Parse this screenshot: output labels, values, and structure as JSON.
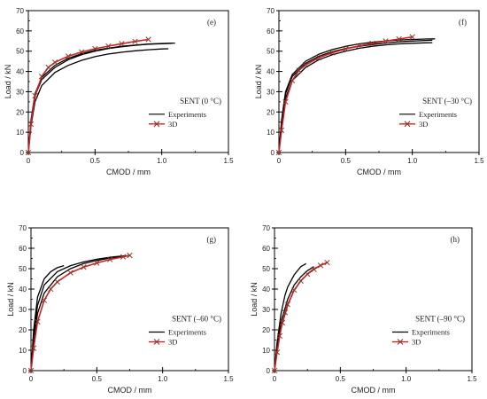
{
  "chart_data": [
    {
      "type": "line",
      "panel_label": "(e)",
      "title": "SENT (0 °C)",
      "xlabel": "CMOD / mm",
      "ylabel": "Load / kN",
      "xlim": [
        0,
        1.5
      ],
      "ylim": [
        0,
        70
      ],
      "xticks": [
        "0",
        "0.5",
        "1.0",
        "1.5"
      ],
      "yticks": [
        "0",
        "10",
        "20",
        "30",
        "40",
        "50",
        "60",
        "70"
      ],
      "legend": {
        "position": "right-middle",
        "entries": [
          "Experiments",
          "3D"
        ]
      },
      "series": [
        {
          "name": "Experiments",
          "color": "#000000",
          "style": "solid",
          "curves": [
            {
              "x": [
                0,
                0.02,
                0.05,
                0.1,
                0.2,
                0.3,
                0.4,
                0.5,
                0.6,
                0.7,
                0.8,
                0.9,
                1.0,
                1.05
              ],
              "y": [
                0,
                13,
                25,
                33,
                39.5,
                43,
                45.5,
                47.3,
                48.6,
                49.5,
                50.2,
                50.7,
                51.1,
                51.2
              ]
            },
            {
              "x": [
                0,
                0.02,
                0.05,
                0.1,
                0.2,
                0.3,
                0.4,
                0.5,
                0.6,
                0.7,
                0.8,
                0.9,
                1.0,
                1.1
              ],
              "y": [
                0,
                16,
                29,
                37,
                43,
                46.5,
                48.8,
                50.4,
                51.5,
                52.4,
                53,
                53.5,
                53.8,
                54
              ]
            },
            {
              "x": [
                0,
                0.02,
                0.05,
                0.1,
                0.2,
                0.3,
                0.4,
                0.5,
                0.6,
                0.7,
                0.8,
                0.9,
                1.0,
                1.08
              ],
              "y": [
                0,
                15,
                28,
                36,
                42,
                45.8,
                48.3,
                50,
                51.3,
                52.2,
                52.9,
                53.4,
                53.7,
                53.9
              ]
            }
          ]
        },
        {
          "name": "3D",
          "color": "#cc2222",
          "style": "line-x-markers",
          "curves": [
            {
              "x": [
                0,
                0.02,
                0.05,
                0.1,
                0.15,
                0.2,
                0.3,
                0.4,
                0.5,
                0.6,
                0.7,
                0.8,
                0.9
              ],
              "y": [
                0,
                14,
                28,
                37.5,
                42,
                44.5,
                47.5,
                49.6,
                51.2,
                52.5,
                53.7,
                54.8,
                55.8
              ]
            }
          ]
        }
      ]
    },
    {
      "type": "line",
      "panel_label": "(f)",
      "title": "SENT (–30 °C)",
      "xlabel": "CMOD / mm",
      "ylabel": "Load / kN",
      "xlim": [
        0,
        1.5
      ],
      "ylim": [
        0,
        70
      ],
      "xticks": [
        "0",
        "0.5",
        "1.0",
        "1.5"
      ],
      "yticks": [
        "0",
        "10",
        "20",
        "30",
        "40",
        "50",
        "60",
        "70"
      ],
      "legend": {
        "position": "right-middle",
        "entries": [
          "Experiments",
          "3D"
        ]
      },
      "series": [
        {
          "name": "Experiments",
          "color": "#000000",
          "style": "solid",
          "curves": [
            {
              "x": [
                0,
                0.02,
                0.05,
                0.1,
                0.2,
                0.3,
                0.4,
                0.5,
                0.6,
                0.7,
                0.8,
                0.9,
                1.0,
                1.1,
                1.15
              ],
              "y": [
                0,
                15,
                29,
                37.5,
                44,
                47.5,
                49.8,
                51.3,
                52.4,
                53.3,
                54,
                54.6,
                55,
                55.3,
                55.4
              ]
            },
            {
              "x": [
                0,
                0.02,
                0.05,
                0.1,
                0.2,
                0.3,
                0.4,
                0.5,
                0.6,
                0.7,
                0.8,
                0.9,
                1.0,
                1.1,
                1.15
              ],
              "y": [
                0,
                14,
                27,
                35.5,
                42,
                45.8,
                48.2,
                50,
                51.4,
                52.4,
                53.1,
                53.6,
                53.9,
                54.1,
                54.2
              ]
            },
            {
              "x": [
                0,
                0.02,
                0.05,
                0.1,
                0.2,
                0.3,
                0.4,
                0.5,
                0.6,
                0.7,
                0.8,
                0.9,
                1.0,
                1.1,
                1.17
              ],
              "y": [
                0,
                16,
                30,
                38.5,
                45,
                48.5,
                50.8,
                52.4,
                53.6,
                54.4,
                55,
                55.5,
                55.8,
                56,
                56.1
              ]
            }
          ]
        },
        {
          "name": "3D",
          "color": "#cc2222",
          "style": "line-x-markers",
          "curves": [
            {
              "x": [
                0,
                0.02,
                0.05,
                0.1,
                0.15,
                0.2,
                0.3,
                0.4,
                0.5,
                0.6,
                0.7,
                0.8,
                0.9,
                1.0
              ],
              "y": [
                0,
                11,
                25,
                35.5,
                40.5,
                43.2,
                46.8,
                49.2,
                51.1,
                52.6,
                53.8,
                55,
                56,
                57
              ]
            }
          ]
        }
      ]
    },
    {
      "type": "line",
      "panel_label": "(g)",
      "title": "SENT (–60 °C)",
      "xlabel": "CMOD / mm",
      "ylabel": "Load / kN",
      "xlim": [
        0,
        1.5
      ],
      "ylim": [
        0,
        70
      ],
      "xticks": [
        "0",
        "0.5",
        "1.0",
        "1.5"
      ],
      "yticks": [
        "0",
        "10",
        "20",
        "30",
        "40",
        "50",
        "60",
        "70"
      ],
      "legend": {
        "position": "right-middle",
        "entries": [
          "Experiments",
          "3D"
        ]
      },
      "series": [
        {
          "name": "Experiments",
          "color": "#000000",
          "style": "solid",
          "curves": [
            {
              "x": [
                0,
                0.02,
                0.05,
                0.1,
                0.2,
                0.3,
                0.4,
                0.5,
                0.6,
                0.7,
                0.75
              ],
              "y": [
                0,
                17,
                32,
                42,
                48.5,
                51.5,
                53.3,
                54.6,
                55.6,
                56.2,
                56.4
              ]
            },
            {
              "x": [
                0,
                0.02,
                0.05,
                0.1,
                0.15,
                0.2,
                0.25
              ],
              "y": [
                0,
                20,
                36,
                45,
                48.5,
                50.5,
                51.5
              ]
            },
            {
              "x": [
                0,
                0.02,
                0.05,
                0.1,
                0.2,
                0.3,
                0.4,
                0.5,
                0.6,
                0.7,
                0.75
              ],
              "y": [
                0,
                15,
                28,
                38,
                46,
                50,
                52.5,
                54,
                55.2,
                56,
                56.3
              ]
            }
          ]
        },
        {
          "name": "3D",
          "color": "#cc2222",
          "style": "line-x-markers",
          "curves": [
            {
              "x": [
                0,
                0.02,
                0.05,
                0.1,
                0.15,
                0.2,
                0.3,
                0.4,
                0.5,
                0.6,
                0.7,
                0.75
              ],
              "y": [
                0,
                11,
                24,
                34.5,
                40,
                43.5,
                48,
                50.8,
                52.8,
                54.5,
                55.8,
                56.5
              ]
            }
          ]
        }
      ]
    },
    {
      "type": "line",
      "panel_label": "(h)",
      "title": "SENT (–90 °C)",
      "xlabel": "CMOD / mm",
      "ylabel": "Load / kN",
      "xlim": [
        0,
        1.5
      ],
      "ylim": [
        0,
        70
      ],
      "xticks": [
        "0",
        "0.5",
        "1.0",
        "1.5"
      ],
      "yticks": [
        "0",
        "10",
        "20",
        "30",
        "40",
        "50",
        "60",
        "70"
      ],
      "legend": {
        "position": "right-middle",
        "entries": [
          "Experiments",
          "3D"
        ]
      },
      "series": [
        {
          "name": "Experiments",
          "color": "#000000",
          "style": "solid",
          "curves": [
            {
              "x": [
                0,
                0.02,
                0.05,
                0.08,
                0.1,
                0.15,
                0.2,
                0.24
              ],
              "y": [
                0,
                14,
                28,
                37,
                41,
                47,
                51,
                52.5
              ]
            },
            {
              "x": [
                0,
                0.02,
                0.05,
                0.1,
                0.15,
                0.2,
                0.25,
                0.3
              ],
              "y": [
                0,
                12,
                24,
                35,
                42,
                46,
                49,
                51
              ]
            },
            {
              "x": [
                0,
                0.02,
                0.05,
                0.1,
                0.15,
                0.2,
                0.25,
                0.3,
                0.35
              ],
              "y": [
                0,
                10,
                21,
                32,
                39.5,
                44,
                47.5,
                50,
                51.5
              ]
            }
          ]
        },
        {
          "name": "3D",
          "color": "#cc2222",
          "style": "line-x-markers",
          "curves": [
            {
              "x": [
                0,
                0.02,
                0.04,
                0.06,
                0.08,
                0.1,
                0.15,
                0.2,
                0.25,
                0.3,
                0.35,
                0.4
              ],
              "y": [
                0,
                9,
                17,
                23.5,
                28.5,
                32.5,
                39.5,
                44,
                47.3,
                49.7,
                51.6,
                53
              ]
            }
          ]
        }
      ]
    }
  ]
}
